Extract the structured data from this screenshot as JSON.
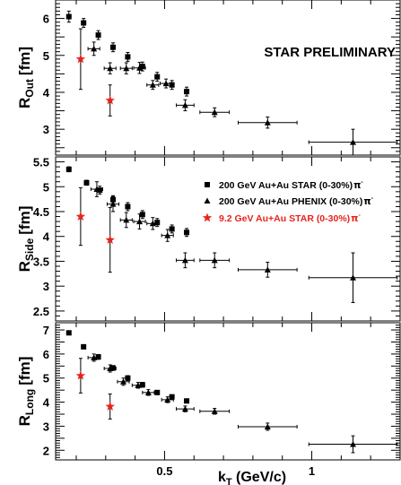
{
  "chart_data": [
    {
      "type": "scatter",
      "panel": "top",
      "ylabel_main": "R",
      "ylabel_sub": "Out",
      "ylabel_unit": "[fm]",
      "ylim": [
        2.3,
        6.5
      ],
      "yticks": [
        "3",
        "4",
        "5",
        "6"
      ],
      "xlim": [
        0.13,
        1.3
      ],
      "annotation": "STAR PRELIMINARY",
      "series": [
        {
          "marker": "square",
          "color": "#000000",
          "points": [
            {
              "x": 0.175,
              "y": 6.05,
              "yerr": 0.15
            },
            {
              "x": 0.225,
              "y": 5.88,
              "yerr": 0.12
            },
            {
              "x": 0.275,
              "y": 5.55,
              "yerr": 0.12
            },
            {
              "x": 0.325,
              "y": 5.22,
              "yerr": 0.12
            },
            {
              "x": 0.375,
              "y": 4.96,
              "yerr": 0.12
            },
            {
              "x": 0.425,
              "y": 4.7,
              "yerr": 0.12
            },
            {
              "x": 0.475,
              "y": 4.42,
              "yerr": 0.12
            },
            {
              "x": 0.525,
              "y": 4.2,
              "yerr": 0.12
            },
            {
              "x": 0.575,
              "y": 4.02,
              "yerr": 0.12
            }
          ]
        },
        {
          "marker": "triangle",
          "color": "#000000",
          "points": [
            {
              "x": 0.26,
              "y": 5.18,
              "yerr": 0.18,
              "xerr": 0.02
            },
            {
              "x": 0.315,
              "y": 4.65,
              "yerr": 0.15,
              "xerr": 0.02
            },
            {
              "x": 0.37,
              "y": 4.65,
              "yerr": 0.15,
              "xerr": 0.02
            },
            {
              "x": 0.415,
              "y": 4.66,
              "yerr": 0.15,
              "xerr": 0.02
            },
            {
              "x": 0.46,
              "y": 4.2,
              "yerr": 0.12,
              "xerr": 0.02
            },
            {
              "x": 0.505,
              "y": 4.24,
              "yerr": 0.12,
              "xerr": 0.02
            },
            {
              "x": 0.57,
              "y": 3.65,
              "yerr": 0.15,
              "xerr": 0.03
            },
            {
              "x": 0.67,
              "y": 3.46,
              "yerr": 0.12,
              "xerr": 0.05
            },
            {
              "x": 0.85,
              "y": 3.18,
              "yerr": 0.15,
              "xerr": 0.1
            },
            {
              "x": 1.14,
              "y": 2.65,
              "yerr": 0.35,
              "xerr": 0.15
            }
          ]
        },
        {
          "marker": "star",
          "color": "#e8231d",
          "points": [
            {
              "x": 0.215,
              "y": 4.9,
              "yerr": 0.82
            },
            {
              "x": 0.315,
              "y": 3.78,
              "yerr": 0.42
            }
          ]
        }
      ]
    },
    {
      "type": "scatter",
      "panel": "middle",
      "ylabel_main": "R",
      "ylabel_sub": "Side",
      "ylabel_unit": "[fm]",
      "ylim": [
        2.3,
        5.6
      ],
      "yticks": [
        "2.5",
        "3",
        "3.5",
        "4",
        "4.5",
        "5",
        "5.5"
      ],
      "xlim": [
        0.13,
        1.3
      ],
      "series": [
        {
          "marker": "square",
          "color": "#000000",
          "points": [
            {
              "x": 0.175,
              "y": 5.35,
              "yerr": 0.05
            },
            {
              "x": 0.235,
              "y": 5.08,
              "yerr": 0.05
            },
            {
              "x": 0.28,
              "y": 4.93,
              "yerr": 0.08
            },
            {
              "x": 0.325,
              "y": 4.74,
              "yerr": 0.08
            },
            {
              "x": 0.375,
              "y": 4.6,
              "yerr": 0.08
            },
            {
              "x": 0.425,
              "y": 4.44,
              "yerr": 0.08
            },
            {
              "x": 0.475,
              "y": 4.28,
              "yerr": 0.08
            },
            {
              "x": 0.525,
              "y": 4.15,
              "yerr": 0.08
            },
            {
              "x": 0.575,
              "y": 4.08,
              "yerr": 0.08
            }
          ]
        },
        {
          "marker": "triangle",
          "color": "#000000",
          "points": [
            {
              "x": 0.27,
              "y": 4.95,
              "yerr": 0.15,
              "xerr": 0.02
            },
            {
              "x": 0.325,
              "y": 4.65,
              "yerr": 0.15,
              "xerr": 0.02
            },
            {
              "x": 0.37,
              "y": 4.33,
              "yerr": 0.15,
              "xerr": 0.02
            },
            {
              "x": 0.415,
              "y": 4.3,
              "yerr": 0.15,
              "xerr": 0.02
            },
            {
              "x": 0.46,
              "y": 4.26,
              "yerr": 0.12,
              "xerr": 0.02
            },
            {
              "x": 0.51,
              "y": 4.02,
              "yerr": 0.12,
              "xerr": 0.02
            },
            {
              "x": 0.57,
              "y": 3.52,
              "yerr": 0.15,
              "xerr": 0.03
            },
            {
              "x": 0.67,
              "y": 3.52,
              "yerr": 0.15,
              "xerr": 0.05
            },
            {
              "x": 0.85,
              "y": 3.33,
              "yerr": 0.15,
              "xerr": 0.1
            },
            {
              "x": 1.14,
              "y": 3.17,
              "yerr": 0.5,
              "xerr": 0.15
            }
          ]
        },
        {
          "marker": "star",
          "color": "#e8231d",
          "points": [
            {
              "x": 0.215,
              "y": 4.4,
              "yerr": 0.58
            },
            {
              "x": 0.315,
              "y": 3.93,
              "yerr": 0.65
            }
          ]
        }
      ],
      "legend": {
        "position": "top-right",
        "entries": [
          {
            "marker": "square",
            "color": "#000000",
            "label": "200 GeV Au+Au STAR (0-30%)",
            "particle": "π",
            "charge": "-"
          },
          {
            "marker": "triangle",
            "color": "#000000",
            "label": "200 GeV Au+Au PHENIX (0-30%)",
            "particle": "π",
            "charge": "-"
          },
          {
            "marker": "star",
            "color": "#e8231d",
            "label": "9.2 GeV Au+Au STAR (0-30%)",
            "particle": "π",
            "charge": "-"
          }
        ]
      }
    },
    {
      "type": "scatter",
      "panel": "bottom",
      "ylabel_main": "R",
      "ylabel_sub": "Long",
      "ylabel_unit": "[fm]",
      "ylim": [
        1.6,
        7.3
      ],
      "yticks": [
        "2",
        "3",
        "4",
        "5",
        "6",
        "7"
      ],
      "xlim": [
        0.13,
        1.3
      ],
      "xticks": [
        "0.5",
        "1"
      ],
      "xlabel_main": "k",
      "xlabel_sub": "T",
      "xlabel_unit": " (GeV/c)",
      "series": [
        {
          "marker": "square",
          "color": "#000000",
          "points": [
            {
              "x": 0.175,
              "y": 6.88,
              "yerr": 0.05
            },
            {
              "x": 0.225,
              "y": 6.3,
              "yerr": 0.05
            },
            {
              "x": 0.275,
              "y": 5.88,
              "yerr": 0.1
            },
            {
              "x": 0.325,
              "y": 5.42,
              "yerr": 0.1
            },
            {
              "x": 0.375,
              "y": 5.0,
              "yerr": 0.1
            },
            {
              "x": 0.425,
              "y": 4.72,
              "yerr": 0.1
            },
            {
              "x": 0.475,
              "y": 4.4,
              "yerr": 0.08
            },
            {
              "x": 0.525,
              "y": 4.22,
              "yerr": 0.08
            },
            {
              "x": 0.575,
              "y": 4.05,
              "yerr": 0.08
            }
          ]
        },
        {
          "marker": "triangle",
          "color": "#000000",
          "points": [
            {
              "x": 0.26,
              "y": 5.85,
              "yerr": 0.15,
              "xerr": 0.02
            },
            {
              "x": 0.315,
              "y": 5.4,
              "yerr": 0.15,
              "xerr": 0.02
            },
            {
              "x": 0.36,
              "y": 4.85,
              "yerr": 0.15,
              "xerr": 0.02
            },
            {
              "x": 0.41,
              "y": 4.7,
              "yerr": 0.12,
              "xerr": 0.02
            },
            {
              "x": 0.445,
              "y": 4.4,
              "yerr": 0.12,
              "xerr": 0.02
            },
            {
              "x": 0.51,
              "y": 4.1,
              "yerr": 0.12,
              "xerr": 0.02
            },
            {
              "x": 0.57,
              "y": 3.72,
              "yerr": 0.12,
              "xerr": 0.03
            },
            {
              "x": 0.67,
              "y": 3.62,
              "yerr": 0.12,
              "xerr": 0.05
            },
            {
              "x": 0.85,
              "y": 2.98,
              "yerr": 0.15,
              "xerr": 0.1
            },
            {
              "x": 1.14,
              "y": 2.25,
              "yerr": 0.35,
              "xerr": 0.15
            }
          ]
        },
        {
          "marker": "star",
          "color": "#e8231d",
          "points": [
            {
              "x": 0.215,
              "y": 5.1,
              "yerr": 0.72
            },
            {
              "x": 0.315,
              "y": 3.82,
              "yerr": 0.52
            }
          ]
        }
      ]
    }
  ]
}
